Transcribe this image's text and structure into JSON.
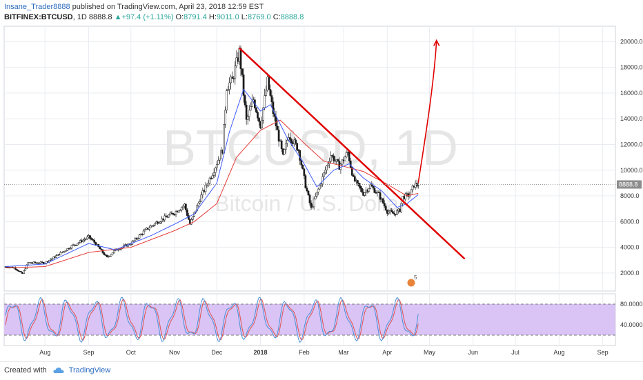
{
  "header": {
    "author": "Insane_Trader8888",
    "published_text": "published on TradingView.com, April 23, 2018 12:59 EST",
    "symbol": "BITFINEX:BTCUSD",
    "interval": "1D",
    "last": "8888.8",
    "up_arrow": "▲",
    "change": "+97.4 (+1.11%)",
    "o_label": "O:",
    "o_value": "8791.4",
    "h_label": "H:",
    "h_value": "9011.0",
    "l_label": "L:",
    "l_value": "8769.0",
    "c_label": "C:",
    "c_value": "8888.8"
  },
  "footer": {
    "created_with": "Created with",
    "brand": "TradingView"
  },
  "colors": {
    "up": "#26a69a",
    "down": "#ef5350",
    "candle_up_fill": "#ffffff",
    "candle_edge": "#1a1a1a",
    "ma_fast": "#3d5afe",
    "ma_slow": "#e53935",
    "trendline": "#e00000",
    "stoch_band": "#d9c4f5",
    "stoch_k": "#4a90d9",
    "stoch_d": "#e05050",
    "grid": "#e9ecf1",
    "watermark": "#e6e6e6",
    "price_tag": "#8c8c8c"
  },
  "chart_data": {
    "type": "candlestick",
    "watermark_symbol": "BTCUSD, 1D",
    "watermark_name": "Bitcoin / U.S. Dollar",
    "price_tag": "8888.8",
    "y_ticks": [
      "20000.0",
      "18000.0",
      "16000.0",
      "14000.0",
      "12000.0",
      "10000.0",
      "8000.0",
      "6000.0",
      "4000.0",
      "2000.0"
    ],
    "y_values": [
      20000,
      18000,
      16000,
      14000,
      12000,
      10000,
      8000,
      6000,
      4000,
      2000
    ],
    "ylim": [
      600,
      21200
    ],
    "x_ticks": [
      "Aug",
      "Sep",
      "Oct",
      "Nov",
      "Dec",
      "2018",
      "Feb",
      "Mar",
      "Apr",
      "May",
      "Jun",
      "Jul",
      "Aug",
      "Sep"
    ],
    "x_tick_dates": [
      "2017-08-01",
      "2017-09-01",
      "2017-10-01",
      "2017-11-01",
      "2017-12-01",
      "2018-01-01",
      "2018-02-01",
      "2018-03-01",
      "2018-04-01",
      "2018-05-01",
      "2018-06-01",
      "2018-07-01",
      "2018-08-01",
      "2018-09-01"
    ],
    "xlim": [
      "2017-07-03",
      "2018-09-10"
    ],
    "close_anchors": [
      {
        "date": "2017-07-04",
        "value": 2500
      },
      {
        "date": "2017-07-10",
        "value": 2420
      },
      {
        "date": "2017-07-16",
        "value": 1950
      },
      {
        "date": "2017-07-20",
        "value": 2800
      },
      {
        "date": "2017-08-01",
        "value": 2800
      },
      {
        "date": "2017-08-10",
        "value": 3400
      },
      {
        "date": "2017-08-20",
        "value": 4100
      },
      {
        "date": "2017-09-01",
        "value": 4800
      },
      {
        "date": "2017-09-05",
        "value": 4400
      },
      {
        "date": "2017-09-14",
        "value": 3200
      },
      {
        "date": "2017-09-20",
        "value": 3800
      },
      {
        "date": "2017-10-01",
        "value": 4300
      },
      {
        "date": "2017-10-12",
        "value": 5400
      },
      {
        "date": "2017-10-20",
        "value": 6000
      },
      {
        "date": "2017-11-01",
        "value": 6700
      },
      {
        "date": "2017-11-08",
        "value": 7300
      },
      {
        "date": "2017-11-12",
        "value": 5800
      },
      {
        "date": "2017-11-20",
        "value": 8000
      },
      {
        "date": "2017-11-28",
        "value": 9800
      },
      {
        "date": "2017-12-05",
        "value": 11600
      },
      {
        "date": "2017-12-08",
        "value": 16500
      },
      {
        "date": "2017-12-12",
        "value": 17000
      },
      {
        "date": "2017-12-17",
        "value": 19200
      },
      {
        "date": "2017-12-22",
        "value": 13800
      },
      {
        "date": "2017-12-27",
        "value": 15500
      },
      {
        "date": "2018-01-01",
        "value": 13500
      },
      {
        "date": "2018-01-06",
        "value": 16900
      },
      {
        "date": "2018-01-10",
        "value": 14500
      },
      {
        "date": "2018-01-17",
        "value": 11000
      },
      {
        "date": "2018-01-21",
        "value": 12800
      },
      {
        "date": "2018-01-28",
        "value": 11600
      },
      {
        "date": "2018-02-02",
        "value": 8800
      },
      {
        "date": "2018-02-06",
        "value": 7000
      },
      {
        "date": "2018-02-10",
        "value": 8200
      },
      {
        "date": "2018-02-20",
        "value": 11200
      },
      {
        "date": "2018-02-26",
        "value": 10300
      },
      {
        "date": "2018-03-04",
        "value": 11400
      },
      {
        "date": "2018-03-08",
        "value": 9300
      },
      {
        "date": "2018-03-15",
        "value": 8200
      },
      {
        "date": "2018-03-20",
        "value": 8800
      },
      {
        "date": "2018-03-26",
        "value": 8100
      },
      {
        "date": "2018-04-01",
        "value": 6800
      },
      {
        "date": "2018-04-06",
        "value": 6600
      },
      {
        "date": "2018-04-10",
        "value": 6900
      },
      {
        "date": "2018-04-12",
        "value": 7900
      },
      {
        "date": "2018-04-17",
        "value": 8100
      },
      {
        "date": "2018-04-20",
        "value": 8850
      },
      {
        "date": "2018-04-23",
        "value": 8890
      }
    ],
    "ma_fast_anchors": [
      {
        "date": "2017-07-04",
        "value": 2500
      },
      {
        "date": "2017-08-01",
        "value": 2700
      },
      {
        "date": "2017-09-01",
        "value": 4300
      },
      {
        "date": "2017-09-20",
        "value": 3800
      },
      {
        "date": "2017-10-15",
        "value": 4900
      },
      {
        "date": "2017-11-01",
        "value": 5800
      },
      {
        "date": "2017-11-15",
        "value": 6600
      },
      {
        "date": "2017-12-01",
        "value": 9000
      },
      {
        "date": "2017-12-10",
        "value": 13000
      },
      {
        "date": "2017-12-20",
        "value": 16300
      },
      {
        "date": "2018-01-01",
        "value": 14600
      },
      {
        "date": "2018-01-08",
        "value": 15100
      },
      {
        "date": "2018-01-20",
        "value": 12500
      },
      {
        "date": "2018-02-01",
        "value": 10500
      },
      {
        "date": "2018-02-10",
        "value": 8700
      },
      {
        "date": "2018-02-22",
        "value": 10000
      },
      {
        "date": "2018-03-05",
        "value": 10500
      },
      {
        "date": "2018-03-15",
        "value": 9400
      },
      {
        "date": "2018-03-28",
        "value": 8400
      },
      {
        "date": "2018-04-08",
        "value": 7100
      },
      {
        "date": "2018-04-15",
        "value": 7400
      },
      {
        "date": "2018-04-23",
        "value": 8100
      }
    ],
    "ma_slow_anchors": [
      {
        "date": "2017-07-04",
        "value": 2400
      },
      {
        "date": "2017-08-01",
        "value": 2500
      },
      {
        "date": "2017-09-01",
        "value": 3600
      },
      {
        "date": "2017-10-01",
        "value": 4000
      },
      {
        "date": "2017-11-01",
        "value": 5300
      },
      {
        "date": "2017-11-15",
        "value": 6000
      },
      {
        "date": "2017-12-01",
        "value": 7400
      },
      {
        "date": "2017-12-15",
        "value": 11000
      },
      {
        "date": "2018-01-01",
        "value": 13100
      },
      {
        "date": "2018-01-15",
        "value": 13900
      },
      {
        "date": "2018-02-01",
        "value": 12100
      },
      {
        "date": "2018-02-15",
        "value": 10700
      },
      {
        "date": "2018-03-01",
        "value": 10300
      },
      {
        "date": "2018-03-15",
        "value": 9900
      },
      {
        "date": "2018-04-01",
        "value": 8900
      },
      {
        "date": "2018-04-15",
        "value": 8000
      },
      {
        "date": "2018-04-23",
        "value": 8200
      }
    ],
    "trendline": {
      "from": {
        "date": "2017-12-17",
        "value": 19500
      },
      "to": {
        "date": "2018-05-26",
        "value": 3100
      }
    },
    "projection_arrow": {
      "from": {
        "date": "2018-04-23",
        "value": 9000
      },
      "to": {
        "date": "2018-05-06",
        "value": 20100
      }
    },
    "stochastic": {
      "y_ticks": [
        "80.0000",
        "40.0000"
      ],
      "y_values": [
        80,
        40
      ],
      "ylim": [
        0,
        100
      ],
      "upper_band": 80,
      "lower_band": 20
    },
    "events_badge": "5"
  }
}
